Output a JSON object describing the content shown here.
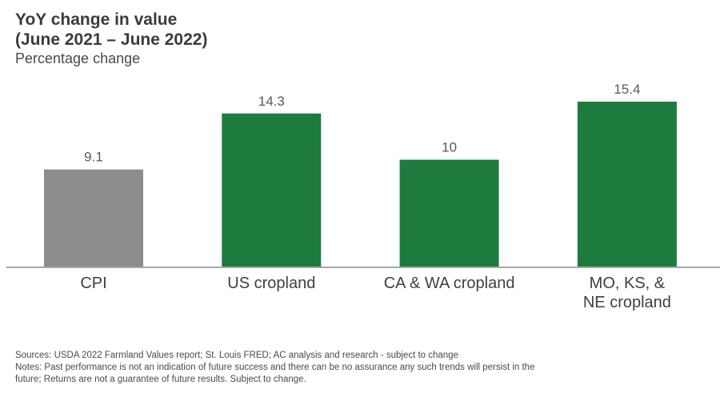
{
  "chart_data": {
    "type": "bar",
    "title": "YoY change in value",
    "title_line2": "(June 2021 – June 2022)",
    "subtitle": "Percentage change",
    "categories": [
      "CPI",
      "US cropland",
      "CA & WA cropland",
      "MO, KS, & NE cropland"
    ],
    "category_lines": [
      [
        "CPI"
      ],
      [
        "US cropland"
      ],
      [
        "CA & WA cropland"
      ],
      [
        "MO, KS, &",
        "NE cropland"
      ]
    ],
    "values": [
      9.1,
      14.3,
      10,
      15.4
    ],
    "value_labels": [
      "9.1",
      "14.3",
      "10",
      "15.4"
    ],
    "colors": [
      "#8c8c8c",
      "#1e7b3e",
      "#1e7b3e",
      "#1e7b3e"
    ],
    "ylim": [
      0,
      17.5
    ],
    "grid": false,
    "legend": "none"
  },
  "footer": {
    "sources": "Sources: USDA 2022 Farmland Values report; St. Louis FRED; AC analysis and research - subject to change",
    "notes_line1": "Notes: Past performance is not an indication of future success and there can be no assurance any such trends will persist in the",
    "notes_line2": "future; Returns are not a guarantee of future results. Subject to change."
  }
}
